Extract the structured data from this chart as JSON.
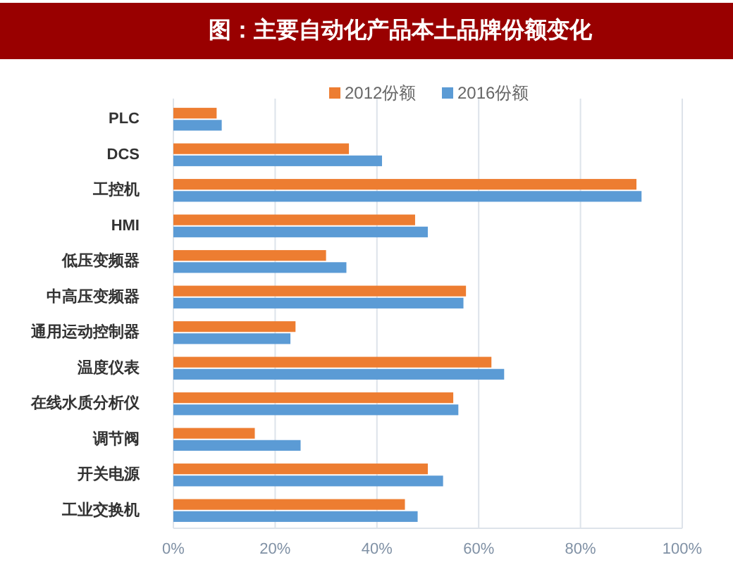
{
  "chart_data": {
    "type": "bar",
    "orientation": "horizontal",
    "title": "图：主要自动化产品本土品牌份额变化",
    "categories": [
      "PLC",
      "DCS",
      "工控机",
      "HMI",
      "低压变频器",
      "中高压变频器",
      "通用运动控制器",
      "温度仪表",
      "在线水质分析仪",
      "调节阀",
      "开关电源",
      "工业交换机"
    ],
    "series": [
      {
        "name": "2012份额",
        "color": "#ed7d31",
        "values": [
          8.5,
          34.5,
          91,
          47.5,
          30,
          57.5,
          24,
          62.5,
          55,
          16,
          50,
          45.5
        ]
      },
      {
        "name": "2016份额",
        "color": "#5b9bd5",
        "values": [
          9.5,
          41,
          92,
          50,
          34,
          57,
          23,
          65,
          56,
          25,
          53,
          48
        ]
      }
    ],
    "xlim": [
      0,
      100
    ],
    "xticks": [
      {
        "value": 0,
        "label": "0%"
      },
      {
        "value": 20,
        "label": "20%"
      },
      {
        "value": 40,
        "label": "40%"
      },
      {
        "value": 60,
        "label": "60%"
      },
      {
        "value": 80,
        "label": "80%"
      },
      {
        "value": 100,
        "label": "100%"
      }
    ],
    "grid": "x",
    "legend": "top"
  }
}
